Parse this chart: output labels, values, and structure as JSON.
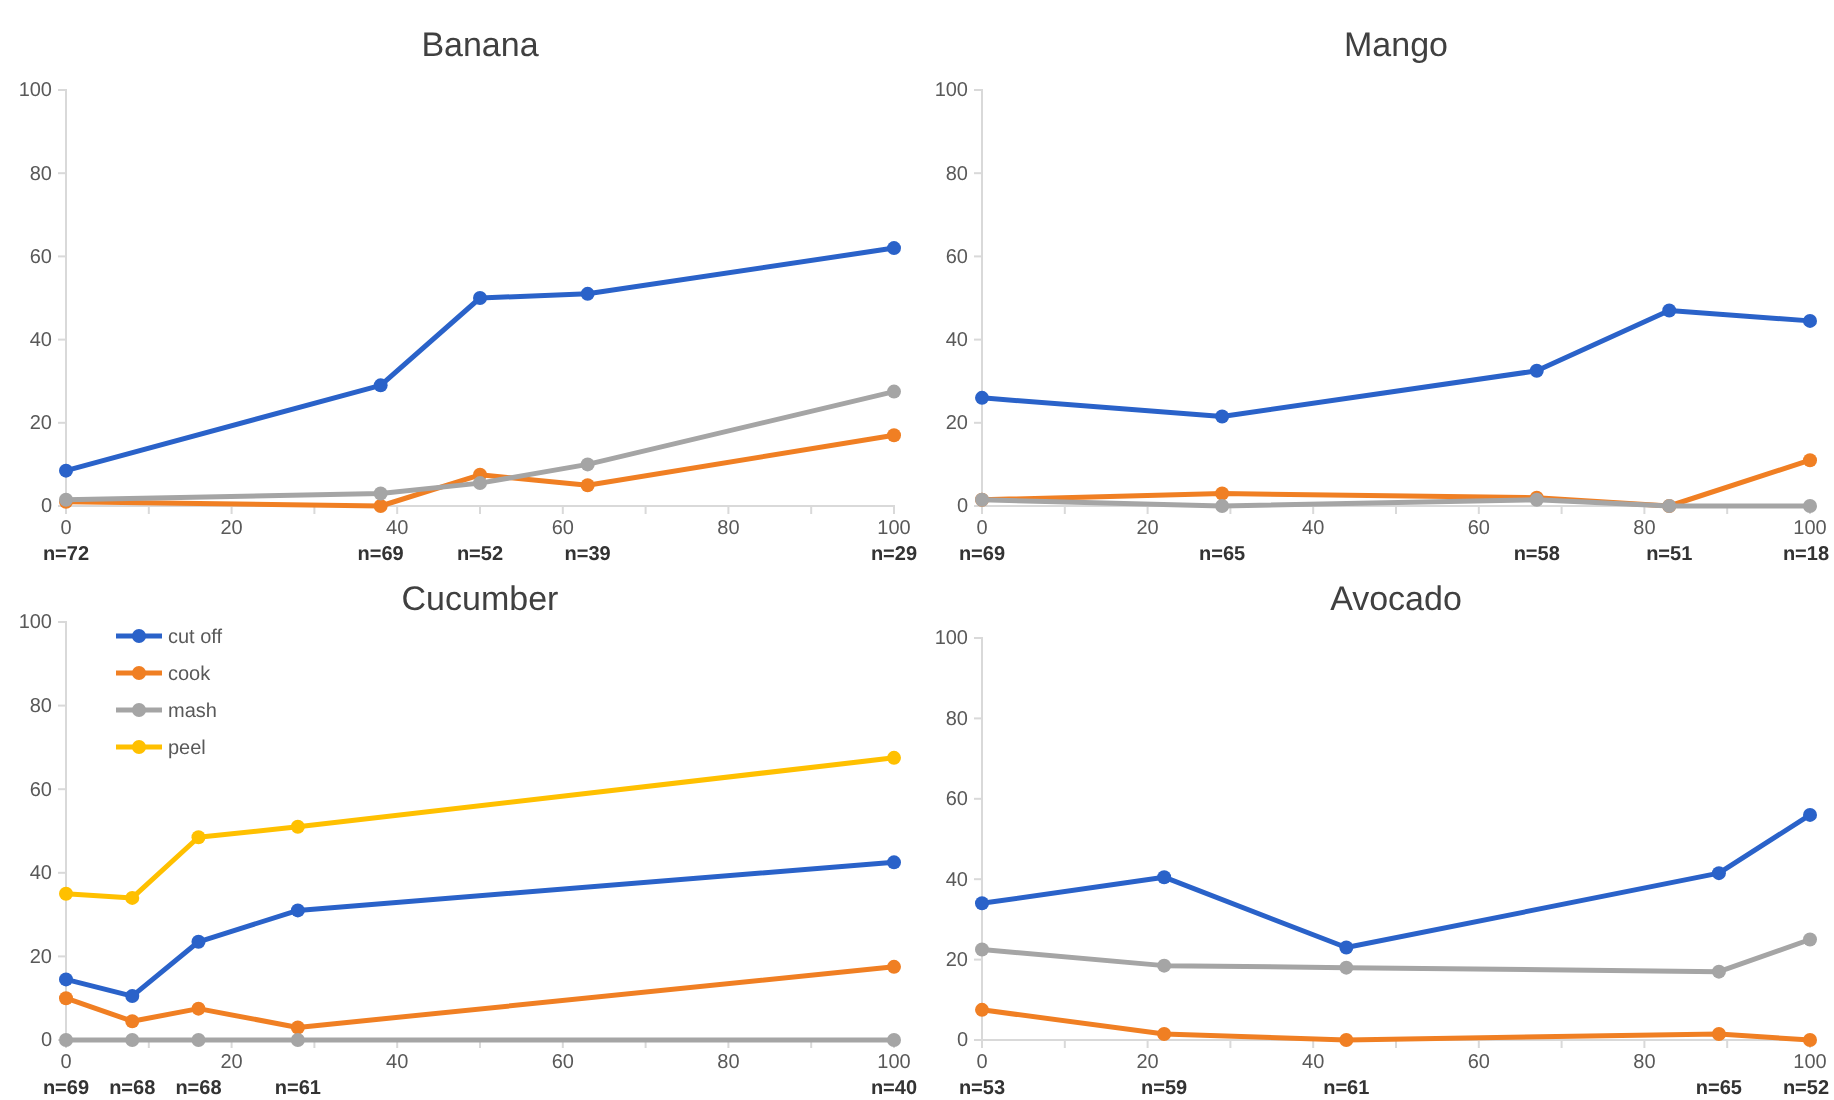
{
  "chart_data": [
    {
      "type": "line",
      "title": "Banana",
      "x": [
        0,
        38,
        50,
        63,
        100
      ],
      "xlim": [
        0,
        100
      ],
      "xticks": [
        0,
        {
          "value": 10,
          "label": null
        },
        20,
        {
          "value": 30,
          "label": null
        },
        40,
        {
          "value": 50,
          "label": null
        },
        60,
        {
          "value": 70,
          "label": null
        },
        80,
        {
          "value": 90,
          "label": null
        },
        100
      ],
      "ylim": [
        0,
        100
      ],
      "yticks": [
        0,
        20,
        40,
        60,
        80,
        100
      ],
      "grid": false,
      "legend": false,
      "marker": "circle",
      "line_style": "solid",
      "series": [
        {
          "color": "#2a62c9",
          "values": [
            8.5,
            29,
            50,
            51,
            62
          ]
        },
        {
          "color": "#f07f23",
          "values": [
            1,
            0,
            7.5,
            5,
            17
          ]
        },
        {
          "color": "#a5a5a5",
          "values": [
            1.5,
            3,
            5.5,
            10,
            27.5
          ]
        }
      ],
      "annotations": [
        "n=72",
        "n=69",
        "n=52",
        "n=39",
        "n=29"
      ]
    },
    {
      "type": "line",
      "title": "Mango",
      "x": [
        0,
        29,
        67,
        83,
        100
      ],
      "xlim": [
        0,
        100
      ],
      "xticks": [
        0,
        {
          "value": 10,
          "label": null
        },
        20,
        {
          "value": 30,
          "label": null
        },
        40,
        {
          "value": 50,
          "label": null
        },
        60,
        {
          "value": 70,
          "label": null
        },
        80,
        {
          "value": 90,
          "label": null
        },
        100
      ],
      "ylim": [
        0,
        100
      ],
      "yticks": [
        0,
        20,
        40,
        60,
        80,
        100
      ],
      "grid": false,
      "legend": false,
      "marker": "circle",
      "line_style": "solid",
      "series": [
        {
          "color": "#2a62c9",
          "values": [
            26,
            21.5,
            32.5,
            47,
            44.5
          ]
        },
        {
          "color": "#f07f23",
          "values": [
            1.5,
            3,
            2,
            0,
            11
          ]
        },
        {
          "color": "#a5a5a5",
          "values": [
            1.5,
            0,
            1.5,
            0,
            0
          ]
        }
      ],
      "annotations": [
        "n=69",
        "n=65",
        "n=58",
        "n=51",
        "n=18"
      ]
    },
    {
      "type": "line",
      "title": "Cucumber",
      "x": [
        0,
        8,
        16,
        28,
        100
      ],
      "xlim": [
        0,
        100
      ],
      "xticks": [
        0,
        {
          "value": 10,
          "label": null
        },
        20,
        {
          "value": 30,
          "label": null
        },
        40,
        {
          "value": 50,
          "label": null
        },
        60,
        {
          "value": 70,
          "label": null
        },
        80,
        {
          "value": 90,
          "label": null
        },
        100
      ],
      "ylim": [
        0,
        100
      ],
      "yticks": [
        0,
        20,
        40,
        60,
        80,
        100
      ],
      "grid": false,
      "legend": "top left",
      "marker": "circle",
      "line_style": "solid",
      "series": [
        {
          "name": "cut off",
          "color": "#2a62c9",
          "values": [
            14.5,
            10.5,
            23.5,
            31,
            42.5
          ]
        },
        {
          "name": "cook",
          "color": "#f07f23",
          "values": [
            10,
            4.5,
            7.5,
            3,
            17.5
          ]
        },
        {
          "name": "mash",
          "color": "#a5a5a5",
          "values": [
            0,
            0,
            0,
            0,
            0
          ]
        },
        {
          "name": "peel",
          "color": "#ffc000",
          "values": [
            35,
            34,
            48.5,
            51,
            67.5
          ]
        }
      ],
      "annotations": [
        "n=69",
        "n=68",
        "n=68",
        "n=61",
        "n=40"
      ]
    },
    {
      "type": "line",
      "title": "Avocado",
      "x": [
        0,
        22,
        44,
        89,
        100
      ],
      "xlim": [
        0,
        100
      ],
      "xticks": [
        0,
        {
          "value": 10,
          "label": null
        },
        20,
        {
          "value": 30,
          "label": null
        },
        40,
        {
          "value": 50,
          "label": null
        },
        60,
        {
          "value": 70,
          "label": null
        },
        80,
        {
          "value": 90,
          "label": null
        },
        100
      ],
      "ylim": [
        0,
        100
      ],
      "yticks": [
        0,
        20,
        40,
        60,
        80,
        100
      ],
      "grid": false,
      "legend": false,
      "marker": "circle",
      "line_style": "solid",
      "series": [
        {
          "color": "#2a62c9",
          "values": [
            34,
            40.5,
            23,
            41.5,
            56
          ]
        },
        {
          "color": "#f07f23",
          "values": [
            7.5,
            1.5,
            0,
            1.5,
            0
          ]
        },
        {
          "color": "#a5a5a5",
          "values": [
            22.5,
            18.5,
            18,
            17,
            25
          ]
        }
      ],
      "annotations": [
        "n=53",
        "n=59",
        "n=61",
        "n=65",
        "n=52"
      ]
    }
  ]
}
